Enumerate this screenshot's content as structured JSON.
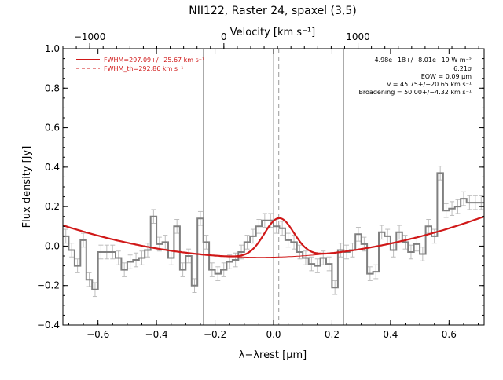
{
  "chart_data": {
    "type": "line",
    "title": "NII122, Raster 24, spaxel (3,5)",
    "xlabel": "λ−λrest [μm]",
    "ylabel": "Flux density [Jy]",
    "top_axis_label": "Velocity [km s⁻¹]",
    "xlim": [
      -0.72,
      0.72
    ],
    "ylim": [
      -0.4,
      1.0
    ],
    "x_ticks": [
      -0.6,
      -0.4,
      -0.2,
      0.0,
      0.2,
      0.4,
      0.6
    ],
    "x_tick_labels": [
      "−0.6",
      "−0.4",
      "−0.2",
      "0.0",
      "0.2",
      "0.4",
      "0.6"
    ],
    "y_ticks": [
      -0.4,
      -0.2,
      0.0,
      0.2,
      0.4,
      0.6,
      0.8,
      1.0
    ],
    "y_tick_labels": [
      "−0.4",
      "−0.2",
      "0.0",
      "0.2",
      "0.4",
      "0.6",
      "0.8",
      "1.0"
    ],
    "top_ticks": [
      -1000,
      0,
      1000
    ],
    "top_tick_labels": [
      "−1000",
      "0",
      "1000"
    ],
    "vertical_lines": [
      -0.24,
      0.0,
      0.24
    ],
    "line_center_dashed": 0.018,
    "legend": {
      "placement": "top-left",
      "entries": [
        {
          "label": "FWHM=297.09+/−25.67 km s⁻¹",
          "color": "#d01818",
          "style": "solid"
        },
        {
          "label": "FWHM_th=292.86 km s⁻¹",
          "color": "#d01818",
          "style": "dashed"
        }
      ]
    },
    "annotations": [
      "4.98e−18+/−8.01e−19 W m⁻²",
      "6.21σ",
      "EQW = 0.09 μm",
      "v = 45.75+/−20.65 km s⁻¹",
      "Broadening = 50.00+/−4.32 km s⁻¹"
    ],
    "series": [
      {
        "kind": "data-histogram",
        "color": "#808080",
        "x": [
          -0.71,
          -0.69,
          -0.67,
          -0.65,
          -0.63,
          -0.61,
          -0.59,
          -0.57,
          -0.55,
          -0.53,
          -0.51,
          -0.49,
          -0.47,
          -0.45,
          -0.43,
          -0.41,
          -0.39,
          -0.37,
          -0.35,
          -0.33,
          -0.31,
          -0.29,
          -0.27,
          -0.25,
          -0.23,
          -0.21,
          -0.19,
          -0.17,
          -0.15,
          -0.13,
          -0.11,
          -0.09,
          -0.07,
          -0.05,
          -0.03,
          -0.01,
          0.01,
          0.03,
          0.05,
          0.07,
          0.09,
          0.11,
          0.13,
          0.15,
          0.17,
          0.19,
          0.21,
          0.23,
          0.25,
          0.27,
          0.29,
          0.31,
          0.33,
          0.35,
          0.37,
          0.39,
          0.41,
          0.43,
          0.45,
          0.47,
          0.49,
          0.51,
          0.53,
          0.55,
          0.57,
          0.59,
          0.61,
          0.63,
          0.65,
          0.67,
          0.69,
          0.71
        ],
        "y": [
          0.05,
          -0.02,
          -0.1,
          0.03,
          -0.17,
          -0.22,
          -0.03,
          -0.03,
          -0.03,
          -0.06,
          -0.12,
          -0.08,
          -0.07,
          -0.06,
          -0.02,
          0.15,
          0.01,
          0.02,
          -0.06,
          0.1,
          -0.12,
          -0.05,
          -0.2,
          0.14,
          0.02,
          -0.12,
          -0.14,
          -0.12,
          -0.08,
          -0.07,
          -0.03,
          0.02,
          0.05,
          0.1,
          0.13,
          0.13,
          0.1,
          0.09,
          0.03,
          0.02,
          -0.03,
          -0.06,
          -0.09,
          -0.1,
          -0.06,
          -0.09,
          -0.21,
          -0.02,
          -0.03,
          -0.02,
          0.06,
          0.01,
          -0.14,
          -0.13,
          0.07,
          0.05,
          -0.02,
          0.07,
          0.02,
          -0.03,
          0.01,
          -0.04,
          0.1,
          0.05,
          0.37,
          0.18,
          0.19,
          0.2,
          0.24,
          0.22,
          0.22,
          0.22
        ],
        "err": 0.035
      },
      {
        "kind": "gaussian-plus-baseline-fit",
        "color": "#d01818",
        "gaussian": {
          "center": 0.019,
          "fwhm": 0.119,
          "amplitude": 0.197
        },
        "baseline_coeffs": [
          -0.056,
          0.031,
          0.354
        ]
      }
    ]
  }
}
